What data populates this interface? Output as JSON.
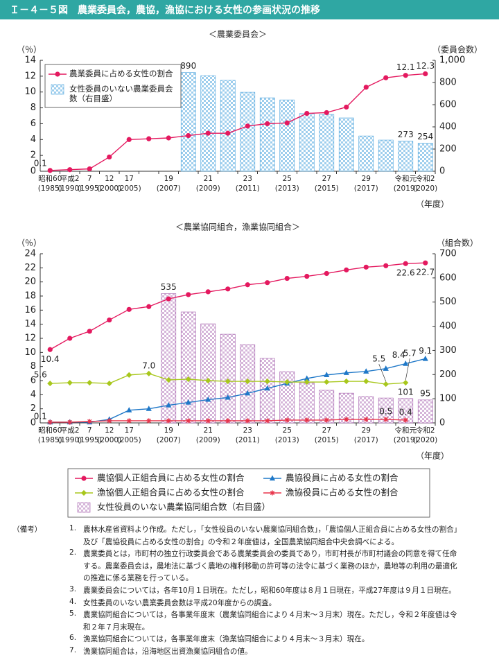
{
  "header": {
    "title": "Ｉ－４－５図　農業委員会，農協，漁協における女性の参画状況の推移"
  },
  "chart_data": [
    {
      "type": "combo",
      "subtitle": "＜農業委員会＞",
      "y_unit_label": "（％）",
      "y2_unit_label": "（委員会数）",
      "x_unit_label": "（年度）",
      "categories": [
        "昭和60",
        "平成2",
        "7",
        "12",
        "17",
        null,
        "19",
        null,
        "21",
        null,
        "23",
        null,
        "25",
        null,
        "27",
        null,
        "29",
        null,
        "令和元",
        "令和2"
      ],
      "category_years": [
        "(1985)",
        "(1990)",
        "(1995)",
        "(2000)",
        "(2005)",
        null,
        "(2007)",
        null,
        "(2009)",
        null,
        "(2011)",
        null,
        "(2013)",
        null,
        "(2015)",
        null,
        "(2017)",
        null,
        "(2019)",
        "(2020)"
      ],
      "ylim": [
        0,
        14
      ],
      "yticks": [
        0,
        2,
        4,
        6,
        8,
        10,
        12,
        14
      ],
      "y2lim": [
        0,
        1000
      ],
      "y2ticks": [
        0,
        200,
        400,
        600,
        800,
        {
          "value": 1000,
          "label": "1,000"
        }
      ],
      "legend": "upper left",
      "series": [
        {
          "name": "農業委員に占める女性の割合",
          "type": "line",
          "marker": "circle",
          "color": "#e4195f",
          "values": [
            0.1,
            0.2,
            0.3,
            1.8,
            4.0,
            4.1,
            4.2,
            4.5,
            4.8,
            4.8,
            5.7,
            6.0,
            6.1,
            7.3,
            7.4,
            8.1,
            10.6,
            11.8,
            12.1,
            12.3
          ],
          "value_labels": [
            "0.1",
            null,
            null,
            null,
            null,
            null,
            null,
            null,
            null,
            null,
            null,
            null,
            null,
            null,
            null,
            null,
            null,
            null,
            "12.1",
            "12.3"
          ]
        },
        {
          "name": "女性委員のいない農業委員会数（右目盛）",
          "type": "bar",
          "axis": "y2",
          "color": "#4ea6de",
          "values": [
            null,
            null,
            null,
            null,
            null,
            null,
            null,
            890,
            862,
            820,
            712,
            662,
            643,
            520,
            512,
            481,
            318,
            281,
            273,
            254
          ],
          "value_labels": [
            null,
            null,
            null,
            null,
            null,
            null,
            null,
            "890",
            null,
            null,
            null,
            null,
            null,
            null,
            null,
            null,
            null,
            null,
            "273",
            "254"
          ]
        }
      ]
    },
    {
      "type": "combo",
      "subtitle": "＜農業協同組合，漁業協同組合＞",
      "y_unit_label": "（％）",
      "y2_unit_label": "（組合数）",
      "x_unit_label": "（年度）",
      "categories": [
        "昭和60",
        "平成2",
        "7",
        "12",
        "17",
        null,
        "19",
        null,
        "21",
        null,
        "23",
        null,
        "25",
        null,
        "27",
        null,
        "29",
        null,
        "令和元",
        "令和2"
      ],
      "category_years": [
        "(1985)",
        "(1990)",
        "(1995)",
        "(2000)",
        "(2005)",
        null,
        "(2007)",
        null,
        "(2009)",
        null,
        "(2011)",
        null,
        "(2013)",
        null,
        "(2015)",
        null,
        "(2017)",
        null,
        "(2019)",
        "(2020)"
      ],
      "ylim": [
        0,
        24
      ],
      "yticks": [
        0,
        2,
        4,
        6,
        8,
        10,
        12,
        14,
        16,
        18,
        20,
        22,
        24
      ],
      "y2lim": [
        0,
        700
      ],
      "y2ticks": [
        0,
        100,
        200,
        300,
        400,
        500,
        600,
        700
      ],
      "legend": "bottom",
      "series": [
        {
          "name": "農協個人正組合員に占める女性の割合",
          "type": "line",
          "marker": "circle",
          "color": "#e4195f",
          "values": [
            10.4,
            12.0,
            13.0,
            14.6,
            16.1,
            16.5,
            17.6,
            18.2,
            18.6,
            19.0,
            19.6,
            19.9,
            20.5,
            20.8,
            21.2,
            21.7,
            22.1,
            22.3,
            22.6,
            22.7
          ],
          "value_labels": [
            "10.4",
            null,
            null,
            null,
            null,
            null,
            null,
            null,
            null,
            null,
            null,
            null,
            null,
            null,
            null,
            null,
            null,
            null,
            "22.6",
            "22.7"
          ]
        },
        {
          "name": "農協役員に占める女性の割合",
          "type": "line",
          "marker": "triangle",
          "color": "#1f78c8",
          "values": [
            0.1,
            0.1,
            0.1,
            0.5,
            1.8,
            2.0,
            2.5,
            2.9,
            3.3,
            3.6,
            4.2,
            4.9,
            5.6,
            6.3,
            6.8,
            7.1,
            7.3,
            7.7,
            8.4,
            9.1
          ],
          "value_labels": [
            "0.1",
            null,
            null,
            null,
            null,
            null,
            null,
            null,
            null,
            null,
            null,
            null,
            null,
            null,
            null,
            null,
            null,
            null,
            "8.4",
            "9.1"
          ]
        },
        {
          "name": "漁協個人正組合員に占める女性の割合",
          "type": "line",
          "marker": "diamond",
          "color": "#a8c71c",
          "values": [
            5.6,
            5.7,
            5.7,
            5.6,
            6.8,
            7.0,
            6.1,
            6.2,
            6.0,
            5.9,
            5.9,
            5.9,
            5.8,
            5.8,
            5.8,
            5.9,
            5.9,
            5.5,
            5.7,
            null
          ],
          "value_labels": [
            "5.6",
            null,
            null,
            null,
            null,
            "7.0",
            null,
            null,
            null,
            null,
            null,
            null,
            null,
            null,
            null,
            null,
            null,
            "5.5",
            "5.7",
            null
          ]
        },
        {
          "name": "漁協役員に占める女性の割合",
          "type": "line",
          "marker": "star",
          "color": "#e8344a",
          "values": [
            0.1,
            0.1,
            0.2,
            0.3,
            0.3,
            0.3,
            0.3,
            0.3,
            0.3,
            0.3,
            0.3,
            0.3,
            0.4,
            0.4,
            0.4,
            0.5,
            0.5,
            0.5,
            0.4,
            null
          ],
          "value_labels": [
            null,
            null,
            null,
            null,
            null,
            null,
            null,
            null,
            null,
            null,
            null,
            null,
            null,
            null,
            null,
            null,
            null,
            "0.5",
            "0.4",
            null
          ]
        },
        {
          "name": "女性役員のいない農業協同組合数（右目盛）",
          "type": "bar",
          "axis": "y2",
          "color": "#a35bab",
          "values": [
            null,
            null,
            null,
            null,
            null,
            null,
            535,
            459,
            410,
            367,
            324,
            267,
            212,
            166,
            135,
            123,
            109,
            103,
            101,
            95
          ],
          "value_labels": [
            null,
            null,
            null,
            null,
            null,
            null,
            "535",
            null,
            null,
            null,
            null,
            null,
            null,
            null,
            null,
            null,
            null,
            null,
            "101",
            "95"
          ]
        }
      ]
    }
  ],
  "notes": {
    "label": "（備考）",
    "items": [
      {
        "number": "1.",
        "lines": [
          "農林水産省資料より作成。ただし，「女性役員のいない農業協同組合数」，「農協個人正組合員に占める女性の割合」",
          "及び「農協役員に占める女性の割合」の令和２年度値は，全国農業協同組合中央会調べによる。"
        ]
      },
      {
        "number": "2.",
        "lines": [
          "農業委員とは，市町村の独立行政委員会である農業委員会の委員であり，市町村長が市町村議会の同意を得て任命",
          "する。農業委員会は，農地法に基づく農地の権利移動の許可等の法令に基づく業務のほか，農地等の利用の最適化",
          "の推進に係る業務を行っている。"
        ]
      },
      {
        "number": "3.",
        "lines": [
          "農業委員会については，各年10月１日現在。ただし，昭和60年度は８月１日現在，平成27年度は９月１日現在。"
        ]
      },
      {
        "number": "4.",
        "lines": [
          "女性委員のいない農業委員会数は平成20年度からの調査。"
        ]
      },
      {
        "number": "5.",
        "lines": [
          "農業協同組合については，各事業年度末（農業協同組合により４月末～３月末）現在。ただし，令和２年度値は令",
          "和２年７月末現在。"
        ]
      },
      {
        "number": "6.",
        "lines": [
          "漁業協同組合については，各事業年度末（漁業協同組合により４月末～３月末）現在。"
        ]
      },
      {
        "number": "7.",
        "lines": [
          "漁業協同組合は，沿海地区出資漁業協同組合の値。"
        ]
      }
    ]
  }
}
